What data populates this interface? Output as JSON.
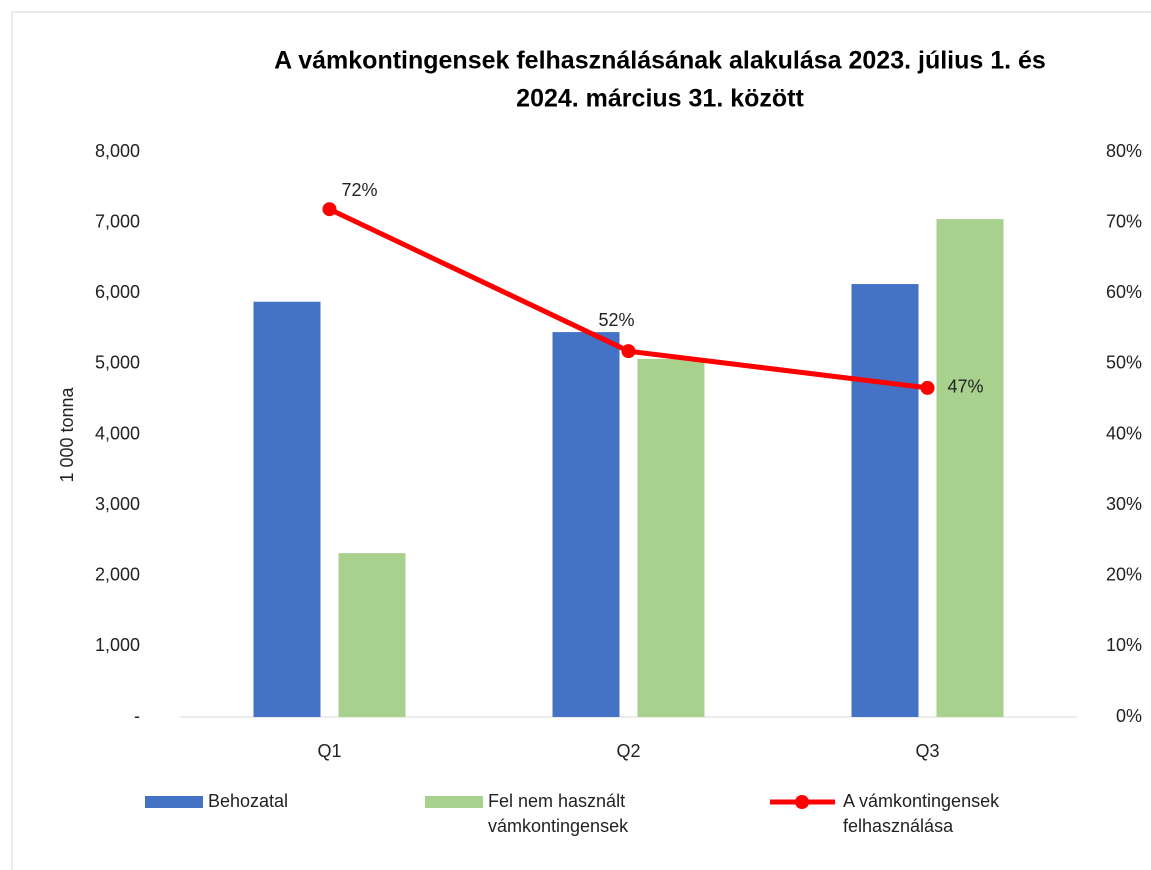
{
  "chart_data": {
    "type": "bar",
    "title": [
      "A vámkontingensek felhasználásának alakulása 2023. július 1. és",
      "2024. március 31. között"
    ],
    "y_label": "1 000 tonna",
    "categories": [
      "Q1",
      "Q2",
      "Q3"
    ],
    "series": [
      {
        "name": "Behozatal",
        "color": "#4472c4",
        "values": [
          5880,
          5450,
          6130
        ]
      },
      {
        "name": "Fel nem használt vámkontingensek",
        "color": "#a9d18e",
        "values": [
          2320,
          5070,
          7050
        ]
      },
      {
        "name": "A vámkontingensek felhasználása",
        "color": "#ff0000",
        "type": "line",
        "axis": "y2",
        "values": [
          71.9,
          51.8,
          46.6
        ],
        "value_labels": [
          "72%",
          "52%",
          "47%"
        ]
      }
    ],
    "ylim": [
      0,
      8000
    ],
    "yticks": [
      {
        "value": 0,
        "label": "-"
      },
      {
        "value": 1000,
        "label": "1,000"
      },
      {
        "value": 2000,
        "label": "2,000"
      },
      {
        "value": 3000,
        "label": "3,000"
      },
      {
        "value": 4000,
        "label": "4,000"
      },
      {
        "value": 5000,
        "label": "5,000"
      },
      {
        "value": 6000,
        "label": "6,000"
      },
      {
        "value": 7000,
        "label": "7,000"
      },
      {
        "value": 8000,
        "label": "8,000"
      }
    ],
    "y2lim": [
      0,
      80
    ],
    "y2ticks": [
      {
        "value": 0,
        "label": "0%"
      },
      {
        "value": 10,
        "label": "10%"
      },
      {
        "value": 20,
        "label": "20%"
      },
      {
        "value": 30,
        "label": "30%"
      },
      {
        "value": 40,
        "label": "40%"
      },
      {
        "value": 50,
        "label": "50%"
      },
      {
        "value": 60,
        "label": "60%"
      },
      {
        "value": 70,
        "label": "70%"
      },
      {
        "value": 80,
        "label": "80%"
      }
    ],
    "legend": "bottom"
  }
}
